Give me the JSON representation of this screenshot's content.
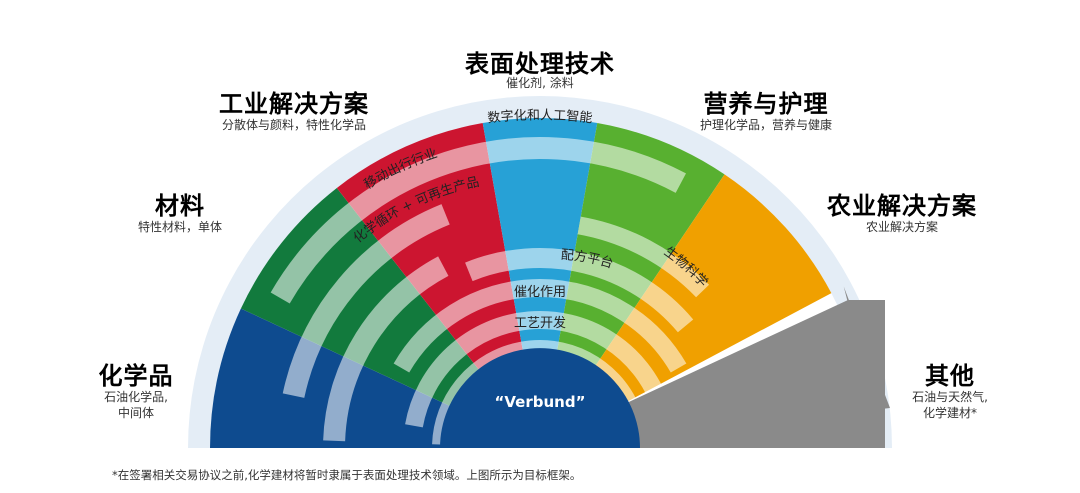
{
  "segments": {
    "chemicals": {
      "title": "化学品",
      "subtitle_line1": "石油化学品,",
      "subtitle_line2": "中间体",
      "color": "#0e4b8f"
    },
    "materials": {
      "title": "材料",
      "subtitle": "特性材料，单体",
      "color": "#127a3d"
    },
    "industrial": {
      "title": "工业解决方案",
      "subtitle": "分散体与颜料，特性化学品",
      "color": "#cc1530"
    },
    "surface": {
      "title": "表面处理技术",
      "subtitle": "催化剂, 涂料",
      "color": "#27a1d6"
    },
    "nutrition": {
      "title": "营养与护理",
      "subtitle": "护理化学品，营养与健康",
      "color": "#58b030"
    },
    "agri": {
      "title": "农业解决方案",
      "subtitle": "农业解决方案",
      "color": "#f0a000"
    },
    "other": {
      "title": "其他",
      "subtitle_line1": "石油与天然气,",
      "subtitle_line2": "化学建材*",
      "color": "#8a8a8a"
    }
  },
  "arc_labels": {
    "digital": "数字化和人工智能",
    "mobility": "移动出行行业",
    "circular": "化学循环 + 可再生产品",
    "formulation": "配方平台",
    "biosciences": "生物科学",
    "catalysis": "催化作用",
    "process": "工艺开发"
  },
  "hub_label": "“Verbund”",
  "footnote": "*在签署相关交易协议之前,化学建材将暂时隶属于表面处理技术领域。上图所示为目标框架。",
  "colors": {
    "band_light": "#e4edf6",
    "hub": "#0e4b8f",
    "arc_white": "#ffffff"
  }
}
